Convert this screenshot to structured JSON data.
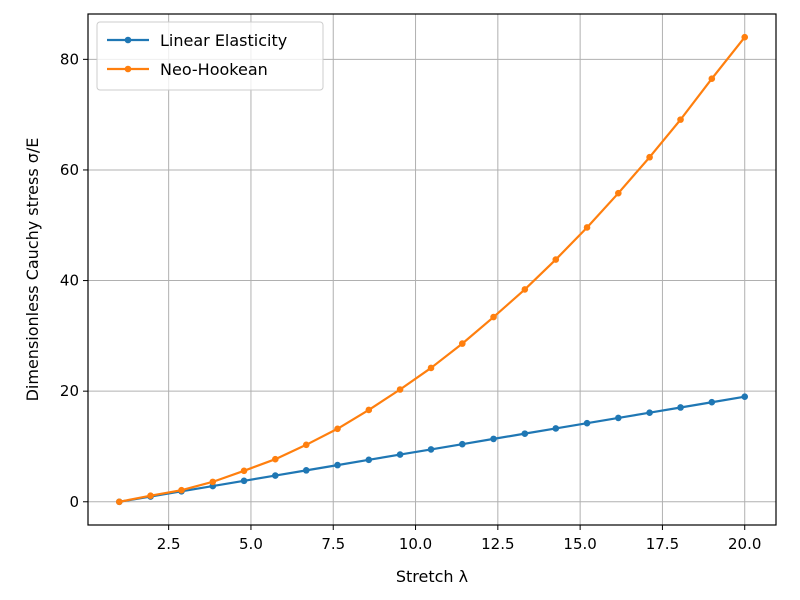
{
  "chart_data": {
    "type": "line",
    "title": "",
    "xlabel": "Stretch λ",
    "ylabel": "Dimensionless Cauchy stress σ/E",
    "xlim": [
      0.05,
      20.95
    ],
    "ylim": [
      -4.2,
      88.2
    ],
    "xticks": [
      2.5,
      5.0,
      7.5,
      10.0,
      12.5,
      15.0,
      17.5,
      20.0
    ],
    "xtick_labels": [
      "2.5",
      "5.0",
      "7.5",
      "10.0",
      "12.5",
      "15.0",
      "17.5",
      "20.0"
    ],
    "yticks": [
      0,
      20,
      40,
      60,
      80
    ],
    "ytick_labels": [
      "0",
      "20",
      "40",
      "60",
      "80"
    ],
    "grid": true,
    "legend_position": "top-left",
    "x": [
      1.0,
      1.95,
      2.89,
      3.84,
      4.79,
      5.74,
      6.68,
      7.63,
      8.58,
      9.53,
      10.47,
      11.42,
      12.37,
      13.32,
      14.26,
      15.21,
      16.16,
      17.11,
      18.05,
      19.0,
      20.0
    ],
    "series": [
      {
        "name": "Linear Elasticity",
        "color": "#1f77b4",
        "values": [
          0.0,
          0.95,
          1.89,
          2.84,
          3.79,
          4.74,
          5.68,
          6.63,
          7.58,
          8.53,
          9.47,
          10.42,
          11.37,
          12.32,
          13.26,
          14.21,
          15.16,
          16.11,
          17.05,
          18.0,
          19.0
        ]
      },
      {
        "name": "Neo-Hookean",
        "color": "#ff7f0e",
        "values": [
          0.0,
          1.1,
          2.1,
          3.6,
          5.6,
          7.7,
          10.3,
          13.2,
          16.6,
          20.3,
          24.2,
          28.6,
          33.4,
          38.4,
          43.8,
          49.6,
          55.8,
          62.3,
          69.1,
          76.5,
          84.0
        ]
      }
    ]
  }
}
